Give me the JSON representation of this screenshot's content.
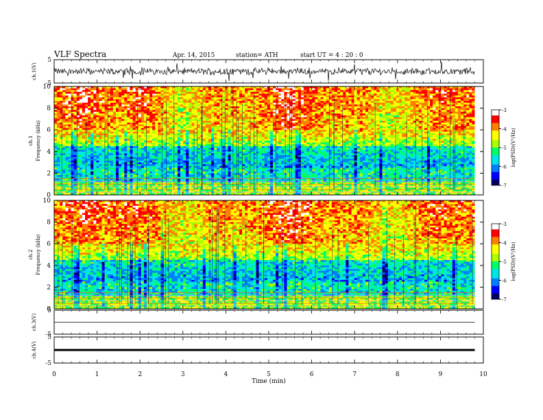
{
  "header": {
    "title": "VLF  Spectra",
    "date": "Apr. 14, 2015",
    "station": "station= ATH",
    "start": "start  UT  =   4  : 20 : 0"
  },
  "chart_data": [
    {
      "type": "line",
      "panel": "ch1-waveform",
      "ylabel": "ch.1(V)",
      "yticks": [
        "5",
        "-5"
      ],
      "ylim": [
        -5,
        5
      ],
      "xlim": [
        0,
        10
      ],
      "data_range_x": [
        0,
        9.8
      ],
      "description_level": "noisy broadband signal around 0 V with amplitude ~±1.5 V"
    },
    {
      "type": "heatmap",
      "panel": "ch1-spectrogram",
      "ylabel_channel": "ch.1",
      "ylabel": "Frequency  (kHz)",
      "yticks": [
        "0",
        "2",
        "4",
        "6",
        "8",
        "10"
      ],
      "ylim": [
        0,
        10
      ],
      "xlim": [
        0,
        10
      ],
      "colorbar": {
        "label": "log(PSD)(V²/Hz)",
        "ticks": [
          "-3",
          "-4",
          "-5",
          "-6",
          "-7"
        ],
        "range": [
          -7,
          -3
        ]
      }
    },
    {
      "type": "heatmap",
      "panel": "ch2-spectrogram",
      "ylabel_channel": "ch.2",
      "ylabel": "Frequency  (kHz)",
      "yticks": [
        "0",
        "2",
        "4",
        "6",
        "8",
        "10"
      ],
      "ylim": [
        0,
        10
      ],
      "xlim": [
        0,
        10
      ],
      "colorbar": {
        "label": "log(PSD)(V²/Hz)",
        "ticks": [
          "-3",
          "-4",
          "-5",
          "-6",
          "-7"
        ],
        "range": [
          -7,
          -3
        ]
      }
    },
    {
      "type": "line",
      "panel": "ch3-waveform",
      "ylabel": "ch.3(V)",
      "yticks": [
        "5",
        "-5"
      ],
      "ylim": [
        -5,
        5
      ],
      "xlim": [
        0,
        10
      ],
      "level": 0
    },
    {
      "type": "line",
      "panel": "ch4-waveform",
      "ylabel": "ch.4(V)",
      "yticks": [
        "5",
        "-5"
      ],
      "ylim": [
        -5,
        5
      ],
      "xlim": [
        0,
        10
      ],
      "level": 0
    }
  ],
  "xaxis": {
    "label": "Time  (min)",
    "ticks": [
      "0",
      "1",
      "2",
      "3",
      "4",
      "5",
      "6",
      "7",
      "8",
      "9",
      "10"
    ]
  },
  "colors": {
    "colormap": [
      "#000066",
      "#0000ff",
      "#0080ff",
      "#00e5e5",
      "#00ff66",
      "#aaff00",
      "#ffff00",
      "#ff8000",
      "#ff0000",
      "#ffffff"
    ]
  }
}
